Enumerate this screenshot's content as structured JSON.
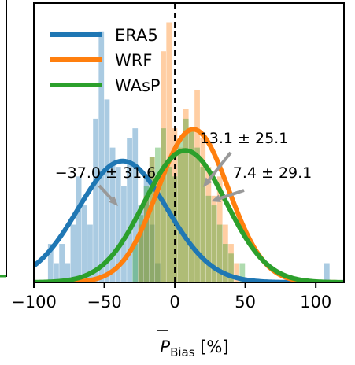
{
  "chart_data": {
    "type": "bar",
    "title": "",
    "xlabel_main": "P",
    "xlabel_sub": "Bias",
    "xlabel_unit": " [%]",
    "xlim": [
      -100,
      120
    ],
    "x_ticks": [
      -100,
      -50,
      0,
      50,
      100
    ],
    "x_tick_labels": [
      "−100",
      "−50",
      "0",
      "50",
      "100"
    ],
    "legend_position": "top-left",
    "reference_line_x": 0,
    "series": [
      {
        "name": "ERA5",
        "color": "#1f77b4",
        "fit": {
          "mean": -37.0,
          "std": 31.6,
          "peak_density": 0.0126
        },
        "annotation": {
          "text": "−37.0 ± 31.6"
        },
        "histogram": [
          {
            "x": -88,
            "h": 0.004
          },
          {
            "x": -84,
            "h": 0.002
          },
          {
            "x": -80,
            "h": 0.004
          },
          {
            "x": -76,
            "h": 0.002
          },
          {
            "x": -72,
            "h": 0.006
          },
          {
            "x": -68,
            "h": 0.011
          },
          {
            "x": -64,
            "h": 0.008
          },
          {
            "x": -60,
            "h": 0.006
          },
          {
            "x": -56,
            "h": 0.017
          },
          {
            "x": -52,
            "h": 0.026
          },
          {
            "x": -48,
            "h": 0.019
          },
          {
            "x": -44,
            "h": 0.014
          },
          {
            "x": -40,
            "h": 0.012
          },
          {
            "x": -36,
            "h": 0.01
          },
          {
            "x": -32,
            "h": 0.015
          },
          {
            "x": -28,
            "h": 0.016
          },
          {
            "x": -24,
            "h": 0.008
          },
          {
            "x": -20,
            "h": 0.011
          },
          {
            "x": -16,
            "h": 0.006
          },
          {
            "x": -12,
            "h": 0.002
          },
          {
            "x": 108,
            "h": 0.002
          }
        ]
      },
      {
        "name": "WRF",
        "color": "#ff7f0e",
        "fit": {
          "mean": 13.1,
          "std": 25.1,
          "peak_density": 0.0159
        },
        "annotation": {
          "text": "13.1 ± 25.1"
        },
        "histogram": [
          {
            "x": -24,
            "h": 0.006
          },
          {
            "x": -20,
            "h": 0.009
          },
          {
            "x": -16,
            "h": 0.013
          },
          {
            "x": -12,
            "h": 0.011
          },
          {
            "x": -8,
            "h": 0.024
          },
          {
            "x": -4,
            "h": 0.027
          },
          {
            "x": 0,
            "h": 0.016
          },
          {
            "x": 4,
            "h": 0.014
          },
          {
            "x": 8,
            "h": 0.018
          },
          {
            "x": 12,
            "h": 0.016
          },
          {
            "x": 16,
            "h": 0.02
          },
          {
            "x": 20,
            "h": 0.015
          },
          {
            "x": 24,
            "h": 0.012
          },
          {
            "x": 28,
            "h": 0.009
          },
          {
            "x": 32,
            "h": 0.011
          },
          {
            "x": 36,
            "h": 0.006
          },
          {
            "x": 40,
            "h": 0.004
          },
          {
            "x": 44,
            "h": 0.002
          }
        ]
      },
      {
        "name": "WAsP",
        "color": "#2ca02c",
        "fit": {
          "mean": 7.4,
          "std": 29.1,
          "peak_density": 0.0137
        },
        "annotation": {
          "text": "7.4 ± 29.1"
        },
        "histogram": [
          {
            "x": -28,
            "h": 0.004
          },
          {
            "x": -24,
            "h": 0.007
          },
          {
            "x": -20,
            "h": 0.01
          },
          {
            "x": -16,
            "h": 0.013
          },
          {
            "x": -12,
            "h": 0.014
          },
          {
            "x": -8,
            "h": 0.016
          },
          {
            "x": -4,
            "h": 0.012
          },
          {
            "x": 0,
            "h": 0.011
          },
          {
            "x": 4,
            "h": 0.015
          },
          {
            "x": 8,
            "h": 0.017
          },
          {
            "x": 12,
            "h": 0.016
          },
          {
            "x": 16,
            "h": 0.014
          },
          {
            "x": 20,
            "h": 0.012
          },
          {
            "x": 24,
            "h": 0.009
          },
          {
            "x": 28,
            "h": 0.008
          },
          {
            "x": 32,
            "h": 0.006
          },
          {
            "x": 36,
            "h": 0.004
          },
          {
            "x": 40,
            "h": 0.003
          },
          {
            "x": 48,
            "h": 0.002
          }
        ]
      }
    ]
  }
}
